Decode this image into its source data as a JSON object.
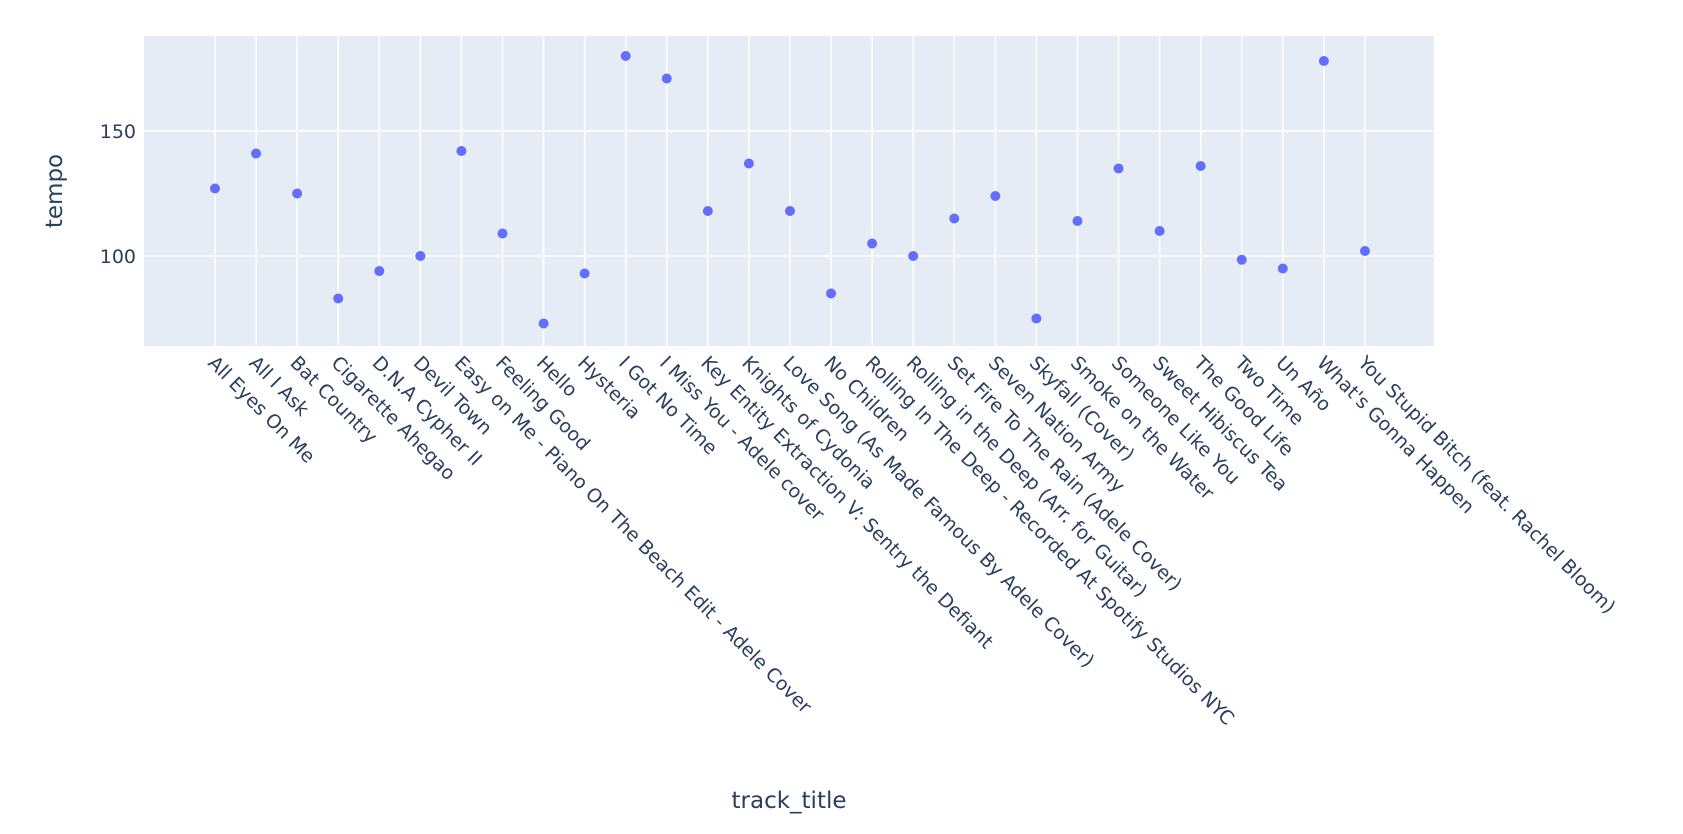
{
  "chart_data": {
    "type": "scatter",
    "xlabel": "track_title",
    "ylabel": "tempo",
    "ylim": [
      64,
      188
    ],
    "yticks": [
      100,
      150
    ],
    "grid": true,
    "colors": {
      "plot_bg": "#e5ecf6",
      "grid": "#ffffff",
      "marker": "#636efa",
      "text": "#2a3f5f"
    },
    "categories": [
      "All Eyes On Me",
      "All I Ask",
      "Bat Country",
      "Cigarette Ahegao",
      "D.N.A Cypher II",
      "Devil Town",
      "Easy on Me - Piano On The Beach Edit - Adele Cover",
      "Feeling Good",
      "Hello",
      "Hysteria",
      "I Got No Time",
      "I Miss You - Adele cover",
      "Key Entity Extraction V: Sentry the Defiant",
      "Knights of Cydonia",
      "Love Song (As Made Famous By Adele Cover)",
      "No Children",
      "Rolling In The Deep - Recorded At Spotify Studios NYC",
      "Rolling in the Deep (Arr. for Guitar)",
      "Set Fire To The Rain (Adele Cover)",
      "Seven Nation Army",
      "Skyfall (Cover)",
      "Smoke on the Water",
      "Someone Like You",
      "Sweet Hibiscus Tea",
      "The Good Life",
      "Two Time",
      "Un Año",
      "What's Gonna Happen",
      "You Stupid Bitch (feat. Rachel Bloom)"
    ],
    "values": [
      127,
      141,
      125,
      83,
      94,
      100,
      142,
      109,
      73,
      93,
      180,
      171,
      118,
      137,
      118,
      85,
      105,
      100,
      115,
      124,
      75,
      114,
      135,
      110,
      136,
      98.5,
      95,
      178,
      102
    ]
  }
}
